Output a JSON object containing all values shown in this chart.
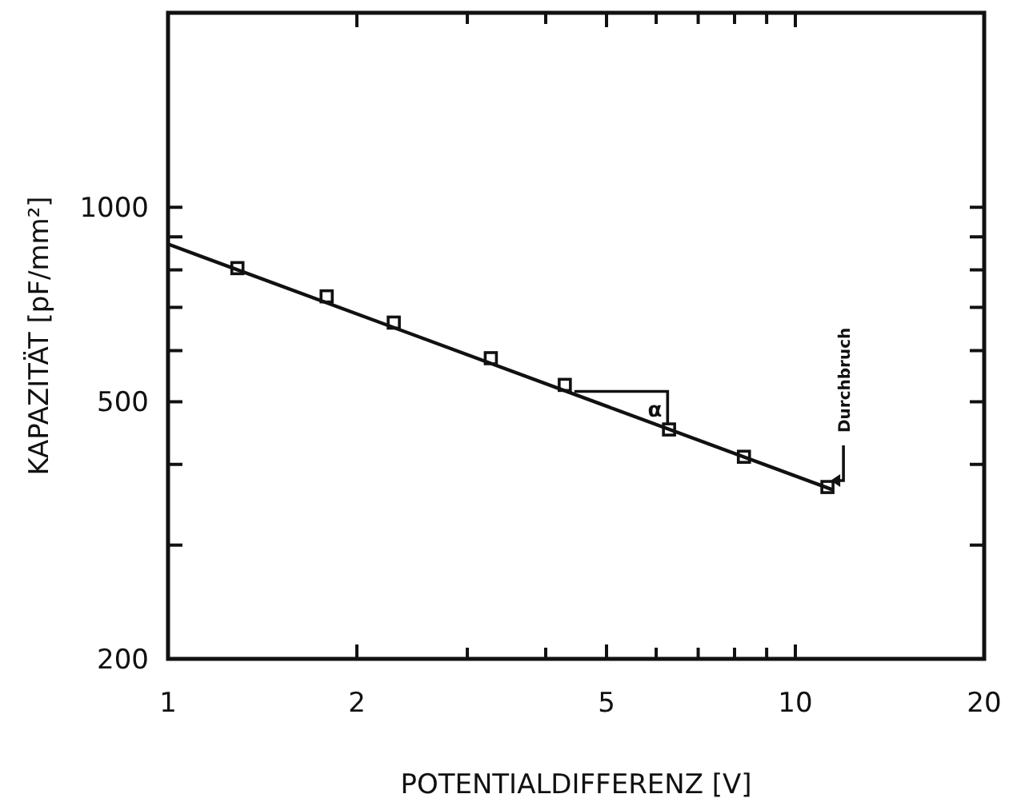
{
  "chart_data": {
    "type": "scatter",
    "xlabel": "POTENTIALDIFFERENZ [V]",
    "ylabel": "KAPAZITÄT [pF/mm²]",
    "log": "xy",
    "xlim": [
      1,
      20
    ],
    "ylim": [
      200,
      2000
    ],
    "xticks": [
      1,
      2,
      {
        "value": 3,
        "label": null
      },
      {
        "value": 4,
        "label": null
      },
      5,
      {
        "value": 6,
        "label": null
      },
      {
        "value": 7,
        "label": null
      },
      {
        "value": 8,
        "label": null
      },
      {
        "value": 9,
        "label": null
      },
      10,
      20
    ],
    "yticks": [
      200,
      {
        "value": 300,
        "label": null
      },
      {
        "value": 400,
        "label": null
      },
      500,
      {
        "value": 600,
        "label": null
      },
      {
        "value": 700,
        "label": null
      },
      {
        "value": 800,
        "label": null
      },
      {
        "value": 900,
        "label": null
      },
      1000
    ],
    "series": [
      {
        "color": "#111111",
        "marker": "square",
        "x": [
          1.29,
          1.79,
          2.29,
          3.27,
          4.29,
          6.29,
          8.28,
          11.25
        ],
        "values": [
          805,
          728,
          663,
          584,
          531,
          453,
          411,
          369
        ]
      },
      {
        "type": "line",
        "color": "#111111",
        "line_style": "solid",
        "x": [
          1,
          11.5
        ],
        "values": [
          877,
          365
        ]
      }
    ],
    "annotations": [
      "Durchbruch",
      {
        "text": "α",
        "x": 5.9,
        "y": 463
      }
    ]
  }
}
